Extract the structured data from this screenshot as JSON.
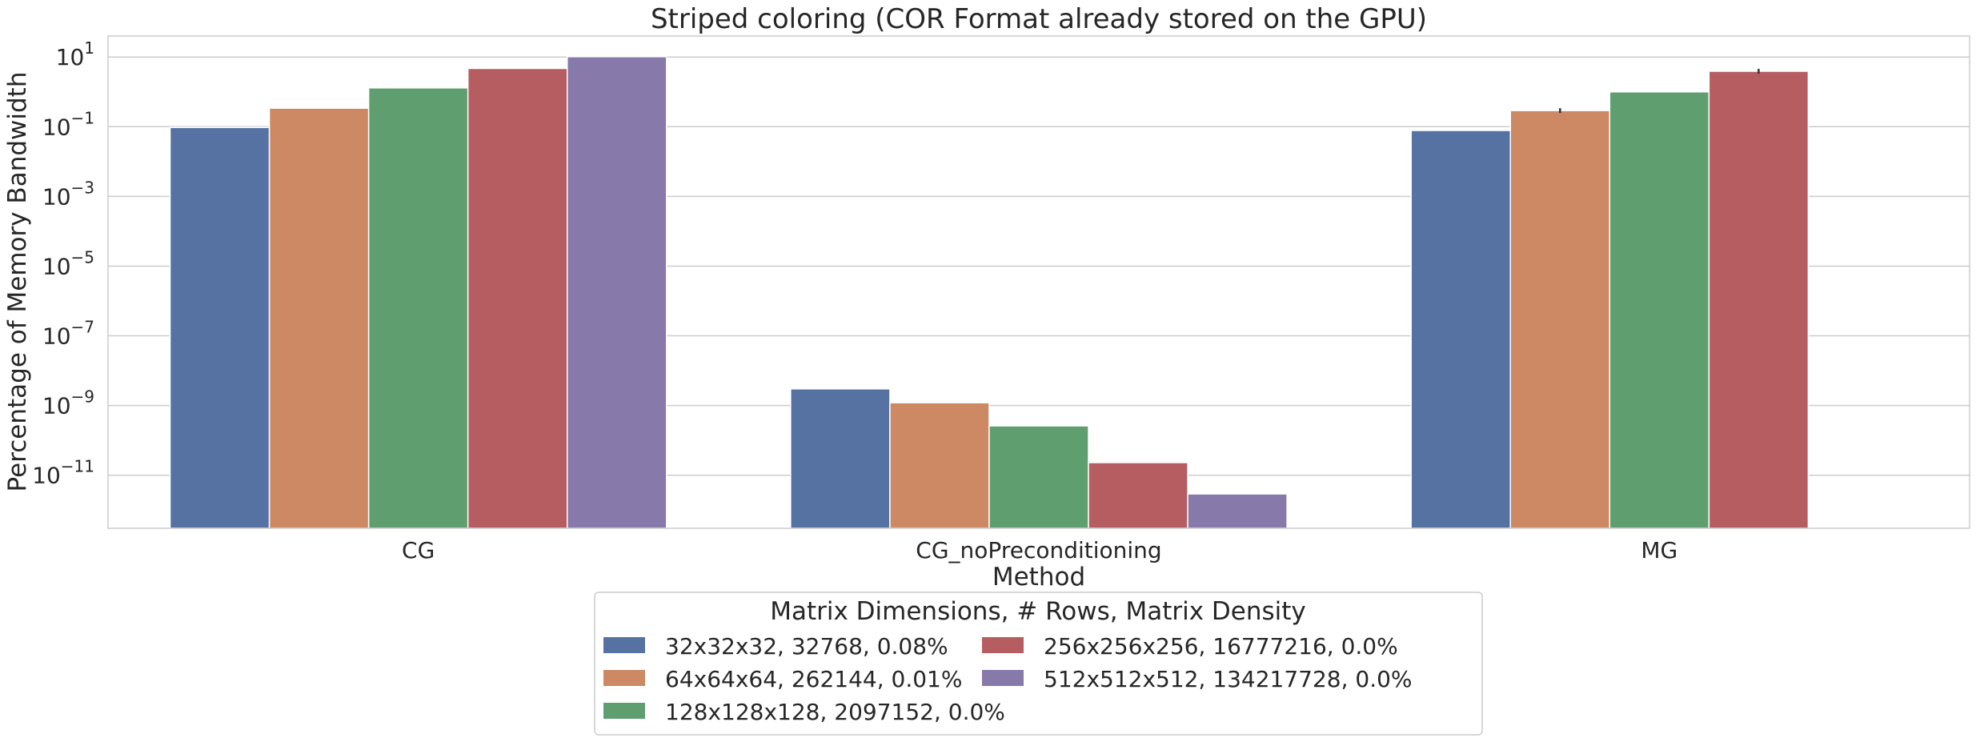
{
  "chart_data": {
    "type": "bar",
    "title": "Striped coloring (COR Format already stored on the GPU)",
    "xlabel": "Method",
    "ylabel": "Percentage of Memory Bandwidth",
    "yscale": "log",
    "ylim": [
      3e-13,
      40
    ],
    "yticks": [
      {
        "value": 10,
        "base": "10",
        "exp": "1"
      },
      {
        "value": 0.1,
        "base": "10",
        "exp": "−1"
      },
      {
        "value": 0.001,
        "base": "10",
        "exp": "−3"
      },
      {
        "value": 1e-05,
        "base": "10",
        "exp": "−5"
      },
      {
        "value": 1e-07,
        "base": "10",
        "exp": "−7"
      },
      {
        "value": 1e-09,
        "base": "10",
        "exp": "−9"
      },
      {
        "value": 1e-11,
        "base": "10",
        "exp": "−11"
      }
    ],
    "grid": true,
    "legend_position": "below",
    "categories": [
      "CG",
      "CG_noPreconditioning",
      "MG"
    ],
    "legend_title": "Matrix Dimensions, # Rows, Matrix Density",
    "series": [
      {
        "name": "32x32x32, 32768, 0.08%",
        "color": "#5572a3",
        "values": [
          0.095,
          3e-09,
          0.078
        ]
      },
      {
        "name": "64x64x64, 262144, 0.01%",
        "color": "#cc8963",
        "values": [
          0.34,
          1.2e-09,
          0.29
        ]
      },
      {
        "name": "128x128x128, 2097152, 0.0%",
        "color": "#5f9e6e",
        "values": [
          1.3,
          2.6e-10,
          1.0
        ]
      },
      {
        "name": "256x256x256, 16777216, 0.0%",
        "color": "#b55d60",
        "values": [
          4.7,
          2.3e-11,
          3.9
        ]
      },
      {
        "name": "512x512x512, 134217728, 0.0%",
        "color": "#8779a9",
        "values": [
          10.2,
          2.9e-12,
          null
        ]
      }
    ]
  }
}
